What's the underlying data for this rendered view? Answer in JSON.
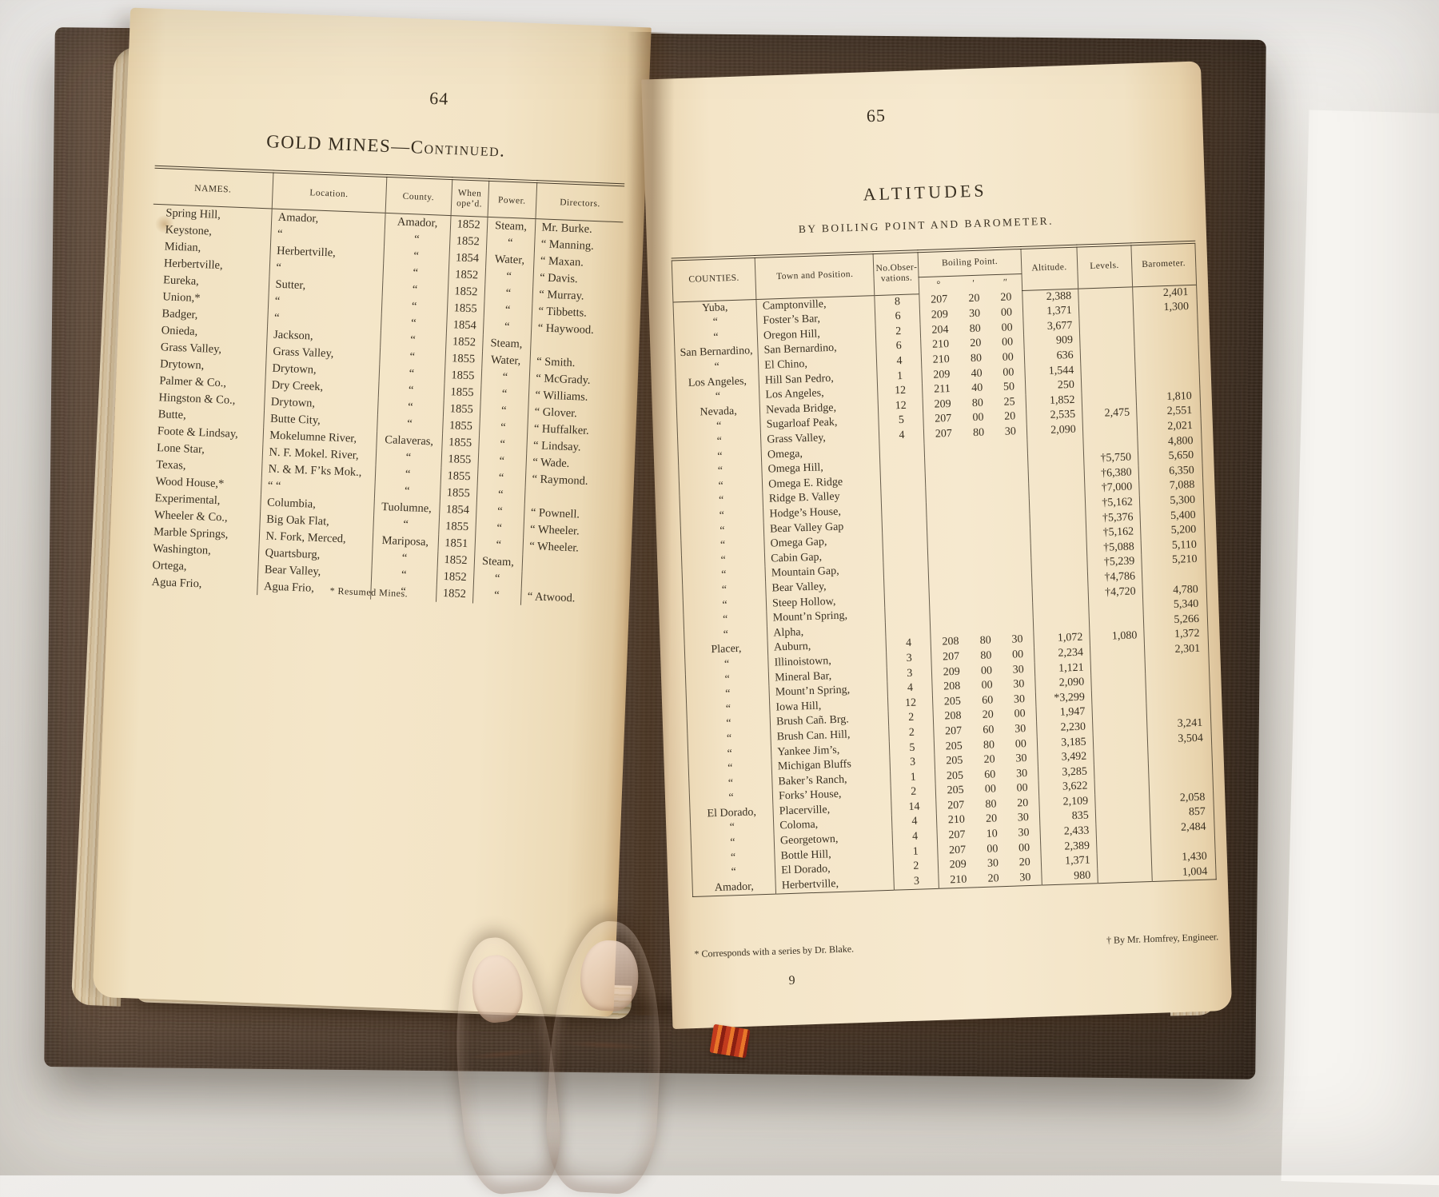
{
  "colors": {
    "page": "#f4e6c9",
    "ink": "#281f12",
    "cover": "#4c3a2b",
    "bookmark_red": "#c23b1e"
  },
  "left_page": {
    "page_number": "64",
    "title": "GOLD MINES—Continued.",
    "table": {
      "columns": [
        "NAMES.",
        "Location.",
        "County.",
        "When ope’d.",
        "Power.",
        "Directors."
      ],
      "rows": [
        [
          "Spring Hill,",
          "Amador,",
          "Amador,",
          "1852",
          "Steam,",
          "Mr. Burke."
        ],
        [
          "Keystone,",
          "“",
          "“",
          "1852",
          "“",
          "“ Manning."
        ],
        [
          "Midian,",
          "Herbertville,",
          "“",
          "1854",
          "Water,",
          "“ Maxan."
        ],
        [
          "Herbertville,",
          "“",
          "“",
          "1852",
          "“",
          "“ Davis."
        ],
        [
          "Eureka,",
          "Sutter,",
          "“",
          "1852",
          "“",
          "“ Murray."
        ],
        [
          "Union,*",
          "“",
          "“",
          "1855",
          "“",
          "“ Tibbetts."
        ],
        [
          "Badger,",
          "“",
          "“",
          "1854",
          "“",
          "“ Haywood."
        ],
        [
          "Onieda,",
          "Jackson,",
          "“",
          "1852",
          "Steam,",
          ""
        ],
        [
          "Grass Valley,",
          "Grass Valley,",
          "“",
          "1855",
          "Water,",
          "“ Smith."
        ],
        [
          "Drytown,",
          "Drytown,",
          "“",
          "1855",
          "“",
          "“ McGrady."
        ],
        [
          "Palmer & Co.,",
          "Dry Creek,",
          "“",
          "1855",
          "“",
          "“ Williams."
        ],
        [
          "Hingston & Co.,",
          "Drytown,",
          "“",
          "1855",
          "“",
          "“ Glover."
        ],
        [
          "Butte,",
          "Butte City,",
          "“",
          "1855",
          "“",
          "“ Huffalker."
        ],
        [
          "Foote & Lindsay,",
          "Mokelumne River,",
          "Calaveras,",
          "1855",
          "“",
          "“ Lindsay."
        ],
        [
          "Lone Star,",
          "N. F. Mokel. River,",
          "“",
          "1855",
          "“",
          "“ Wade."
        ],
        [
          "Texas,",
          "N. & M. F’ks Mok.,",
          "“",
          "1855",
          "“",
          "“ Raymond."
        ],
        [
          "Wood House,*",
          "“  “",
          "“",
          "1855",
          "“",
          ""
        ],
        [
          "Experimental,",
          "Columbia,",
          "Tuolumne,",
          "1854",
          "“",
          "“ Pownell."
        ],
        [
          "Wheeler & Co.,",
          "Big Oak Flat,",
          "“",
          "1855",
          "“",
          "“ Wheeler."
        ],
        [
          "Marble Springs,",
          "N. Fork, Merced,",
          "Mariposa,",
          "1851",
          "“",
          "“ Wheeler."
        ],
        [
          "Washington,",
          "Quartsburg,",
          "“",
          "1852",
          "Steam,",
          ""
        ],
        [
          "Ortega,",
          "Bear Valley,",
          "“",
          "1852",
          "“",
          ""
        ],
        [
          "Agua Frio,",
          "Agua Frio,",
          "“",
          "1852",
          "“",
          "“ Atwood."
        ]
      ],
      "footnote": "* Resumed Mines."
    }
  },
  "right_page": {
    "page_number": "65",
    "title": "ALTITUDES",
    "subtitle": "BY BOILING POINT AND BAROMETER.",
    "table": {
      "columns": [
        "COUNTIES.",
        "Town and Position.",
        "No.Obser­vations.",
        "Boiling Point.",
        "Altitude.",
        "Levels.",
        "Barometer."
      ],
      "boiling_subcols": [
        "°",
        "′",
        "″"
      ],
      "rows": [
        [
          "Yuba,",
          "Camptonville,",
          "8",
          "207",
          "20",
          "20",
          "2,388",
          "",
          "2,401"
        ],
        [
          "“",
          "Foster’s Bar,",
          "6",
          "209",
          "30",
          "00",
          "1,371",
          "",
          "1,300"
        ],
        [
          "“",
          "Oregon Hill,",
          "2",
          "204",
          "80",
          "00",
          "3,677",
          "",
          ""
        ],
        [
          "San Bernardino,",
          "San Bernardino,",
          "6",
          "210",
          "20",
          "00",
          "909",
          "",
          ""
        ],
        [
          "“",
          "El Chino,",
          "4",
          "210",
          "80",
          "00",
          "636",
          "",
          ""
        ],
        [
          "Los Angeles,",
          "Hill San Pedro,",
          "1",
          "209",
          "40",
          "00",
          "1,544",
          "",
          ""
        ],
        [
          "“",
          "Los Angeles,",
          "12",
          "211",
          "40",
          "50",
          "250",
          "",
          ""
        ],
        [
          "Nevada,",
          "Nevada Bridge,",
          "12",
          "209",
          "80",
          "25",
          "1,852",
          "",
          "1,810"
        ],
        [
          "“",
          "Sugarloaf Peak,",
          "5",
          "207",
          "00",
          "20",
          "2,535",
          "2,475",
          "2,551"
        ],
        [
          "“",
          "Grass Valley,",
          "4",
          "207",
          "80",
          "30",
          "2,090",
          "",
          "2,021"
        ],
        [
          "“",
          "Omega,",
          "",
          "",
          "",
          "",
          "",
          "",
          "4,800"
        ],
        [
          "“",
          "Omega Hill,",
          "",
          "",
          "",
          "",
          "",
          "†5,750",
          "5,650"
        ],
        [
          "“",
          "Omega E. Ridge",
          "",
          "",
          "",
          "",
          "",
          "†6,380",
          "6,350"
        ],
        [
          "“",
          "Ridge B. Valley",
          "",
          "",
          "",
          "",
          "",
          "†7,000",
          "7,088"
        ],
        [
          "“",
          "Hodge’s House,",
          "",
          "",
          "",
          "",
          "",
          "†5,162",
          "5,300"
        ],
        [
          "“",
          "Bear Valley Gap",
          "",
          "",
          "",
          "",
          "",
          "†5,376",
          "5,400"
        ],
        [
          "“",
          "Omega Gap,",
          "",
          "",
          "",
          "",
          "",
          "†5,162",
          "5,200"
        ],
        [
          "“",
          "Cabin Gap,",
          "",
          "",
          "",
          "",
          "",
          "†5,088",
          "5,110"
        ],
        [
          "“",
          "Mountain Gap,",
          "",
          "",
          "",
          "",
          "",
          "†5,239",
          "5,210"
        ],
        [
          "“",
          "Bear Valley,",
          "",
          "",
          "",
          "",
          "",
          "†4,786",
          ""
        ],
        [
          "“",
          "Steep Hollow,",
          "",
          "",
          "",
          "",
          "",
          "†4,720",
          "4,780"
        ],
        [
          "“",
          "Mount’n Spring,",
          "",
          "",
          "",
          "",
          "",
          "",
          "5,340"
        ],
        [
          "“",
          "Alpha,",
          "",
          "",
          "",
          "",
          "",
          "",
          "5,266"
        ],
        [
          "Placer,",
          "Auburn,",
          "4",
          "208",
          "80",
          "30",
          "1,072",
          "1,080",
          "1,372"
        ],
        [
          "“",
          "Illinoistown,",
          "3",
          "207",
          "80",
          "00",
          "2,234",
          "",
          "2,301"
        ],
        [
          "“",
          "Mineral Bar,",
          "3",
          "209",
          "00",
          "30",
          "1,121",
          "",
          ""
        ],
        [
          "“",
          "Mount’n Spring,",
          "4",
          "208",
          "00",
          "30",
          "2,090",
          "",
          ""
        ],
        [
          "“",
          "Iowa Hill,",
          "12",
          "205",
          "60",
          "30",
          "*3,299",
          "",
          ""
        ],
        [
          "“",
          "Brush Cañ. Brg.",
          "2",
          "208",
          "20",
          "00",
          "1,947",
          "",
          ""
        ],
        [
          "“",
          "Brush Can. Hill,",
          "2",
          "207",
          "60",
          "30",
          "2,230",
          "",
          "3,241"
        ],
        [
          "“",
          "Yankee Jim’s,",
          "5",
          "205",
          "80",
          "00",
          "3,185",
          "",
          "3,504"
        ],
        [
          "“",
          "Michigan Bluffs",
          "3",
          "205",
          "20",
          "30",
          "3,492",
          "",
          ""
        ],
        [
          "“",
          "Baker’s Ranch,",
          "1",
          "205",
          "60",
          "30",
          "3,285",
          "",
          ""
        ],
        [
          "“",
          "Forks’ House,",
          "2",
          "205",
          "00",
          "00",
          "3,622",
          "",
          ""
        ],
        [
          "El Dorado,",
          "Placerville,",
          "14",
          "207",
          "80",
          "20",
          "2,109",
          "",
          "2,058"
        ],
        [
          "“",
          "Coloma,",
          "4",
          "210",
          "20",
          "30",
          "835",
          "",
          "857"
        ],
        [
          "“",
          "Georgetown,",
          "4",
          "207",
          "10",
          "30",
          "2,433",
          "",
          "2,484"
        ],
        [
          "“",
          "Bottle Hill,",
          "1",
          "207",
          "00",
          "00",
          "2,389",
          "",
          ""
        ],
        [
          "“",
          "El Dorado,",
          "2",
          "209",
          "30",
          "20",
          "1,371",
          "",
          "1,430"
        ],
        [
          "Amador,",
          "Herbertville,",
          "3",
          "210",
          "20",
          "30",
          "980",
          "",
          "1,004"
        ]
      ],
      "footnote_left": "* Corresponds with a series by Dr. Blake.",
      "footnote_right": "† By Mr. Homfrey, Engineer.",
      "signature_number": "9"
    }
  }
}
